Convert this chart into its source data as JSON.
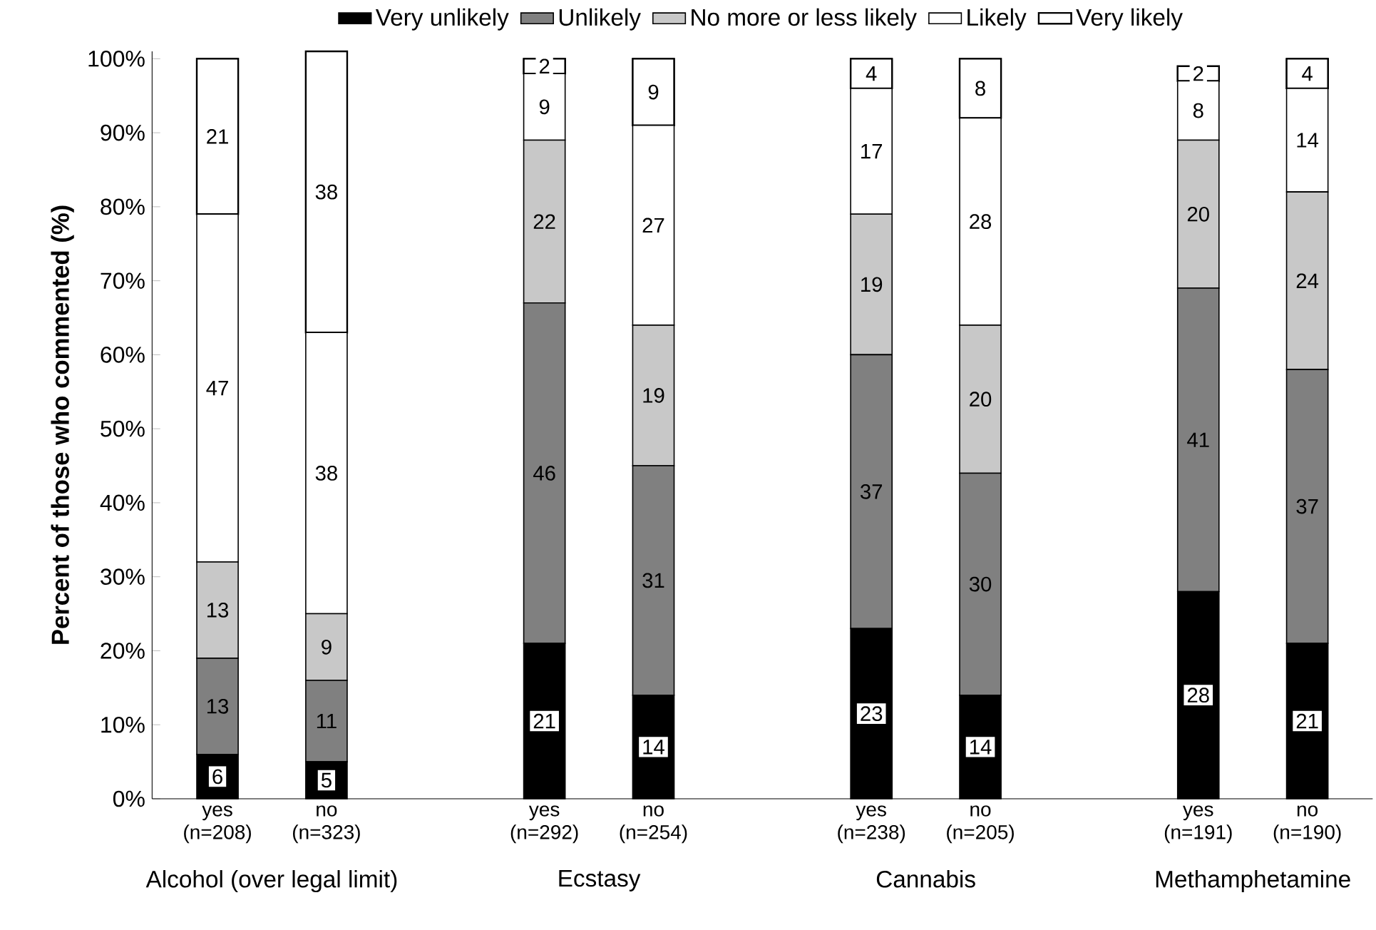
{
  "chart_data": {
    "type": "bar",
    "stacked": true,
    "ylabel": "Percent of those who commented (%)",
    "categories": [
      "yes (n=208)",
      "no (n=323)",
      null,
      "yes (n=292)",
      "no (n=254)",
      null,
      "yes (n=238)",
      "no (n=205)",
      null,
      "yes (n=191)",
      "no (n=190)"
    ],
    "annotations": [
      "Alcohol (over legal limit)",
      "Ecstasy",
      "Cannabis",
      "Methamphetamine"
    ],
    "series": [
      {
        "name": "Very unlikely",
        "color": "#000000",
        "values": [
          6,
          5,
          null,
          21,
          14,
          null,
          23,
          14,
          null,
          28,
          21
        ]
      },
      {
        "name": "Unlikely",
        "color": "#808080",
        "values": [
          13,
          11,
          null,
          46,
          31,
          null,
          37,
          30,
          null,
          41,
          37
        ]
      },
      {
        "name": "No more or less likely",
        "color": "#c8c8c8",
        "values": [
          13,
          9,
          null,
          22,
          19,
          null,
          19,
          20,
          null,
          20,
          24
        ]
      },
      {
        "name": "Likely",
        "color": "#ffffff",
        "values": [
          47,
          38,
          null,
          9,
          27,
          null,
          17,
          28,
          null,
          8,
          14
        ]
      },
      {
        "name": "Very likely",
        "color": "#ffffff",
        "values": [
          21,
          38,
          null,
          2,
          9,
          null,
          4,
          8,
          null,
          2,
          4
        ]
      }
    ],
    "ylim": [
      0,
      101
    ],
    "yticks": [
      {
        "value": 0,
        "label": "0%"
      },
      {
        "value": 10,
        "label": "10%"
      },
      {
        "value": 20,
        "label": "20%"
      },
      {
        "value": 30,
        "label": "30%"
      },
      {
        "value": 40,
        "label": "40%"
      },
      {
        "value": 50,
        "label": "50%"
      },
      {
        "value": 60,
        "label": "60%"
      },
      {
        "value": 70,
        "label": "70%"
      },
      {
        "value": 80,
        "label": "80%"
      },
      {
        "value": 90,
        "label": "90%"
      },
      {
        "value": 100,
        "label": "100%"
      }
    ],
    "data_labels": true,
    "legend": "top",
    "grid": false
  }
}
